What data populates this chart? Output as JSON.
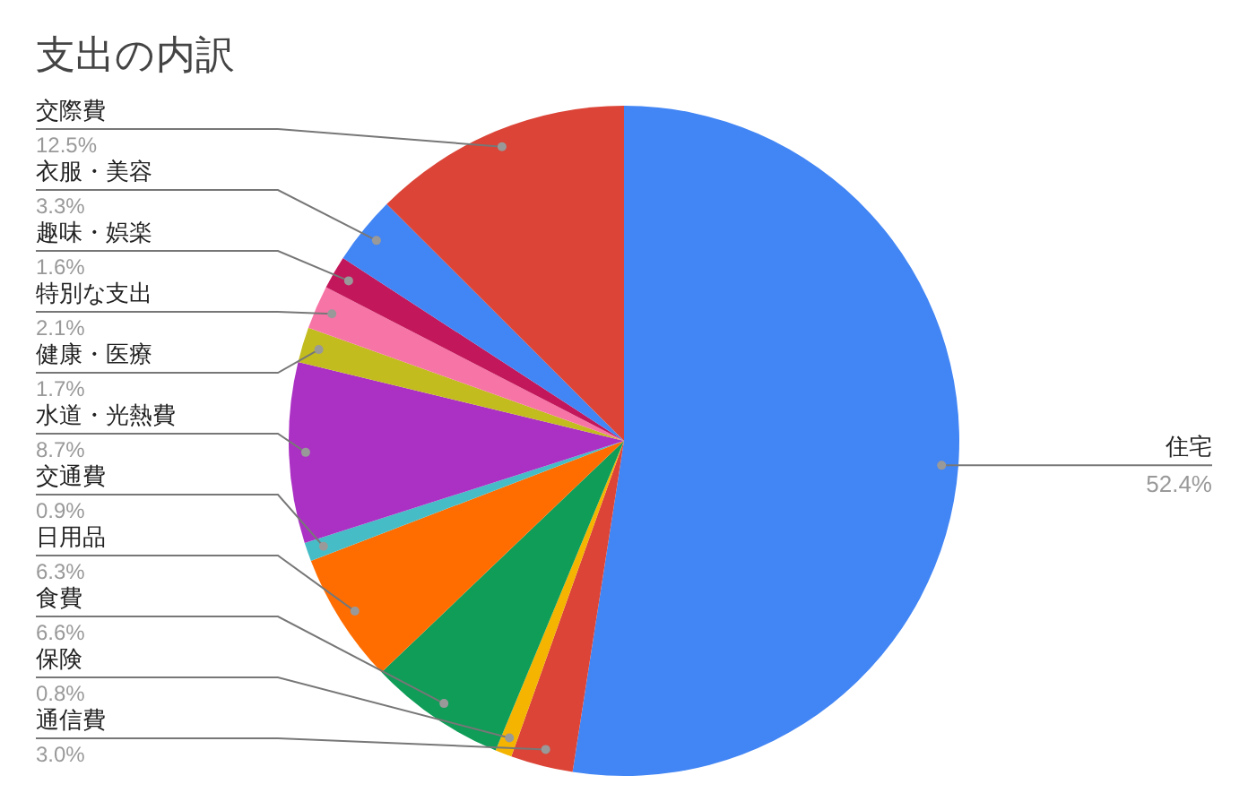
{
  "chart_data": {
    "type": "pie",
    "title": "支出の内訳",
    "categories": [
      "住宅",
      "通信費",
      "保険",
      "食費",
      "日用品",
      "交通費",
      "水道・光熱費",
      "健康・医療",
      "特別な支出",
      "趣味・娯楽",
      "衣服・美容",
      "交際費"
    ],
    "values": [
      52.4,
      3.0,
      0.8,
      6.6,
      6.3,
      0.9,
      8.7,
      1.7,
      2.1,
      1.6,
      3.3,
      12.5
    ],
    "value_labels": [
      "52.4%",
      "3.0%",
      "0.8%",
      "6.6%",
      "6.3%",
      "0.9%",
      "8.7%",
      "1.7%",
      "2.1%",
      "1.6%",
      "3.3%",
      "12.5%"
    ],
    "colors": [
      "#4285f4",
      "#db4437",
      "#f4b400",
      "#0f9d58",
      "#ff6d00",
      "#46bdc6",
      "#ab30c4",
      "#c2bc1f",
      "#f774a6",
      "#c2185b",
      "#4285f4",
      "#db4437"
    ],
    "legend": false
  }
}
